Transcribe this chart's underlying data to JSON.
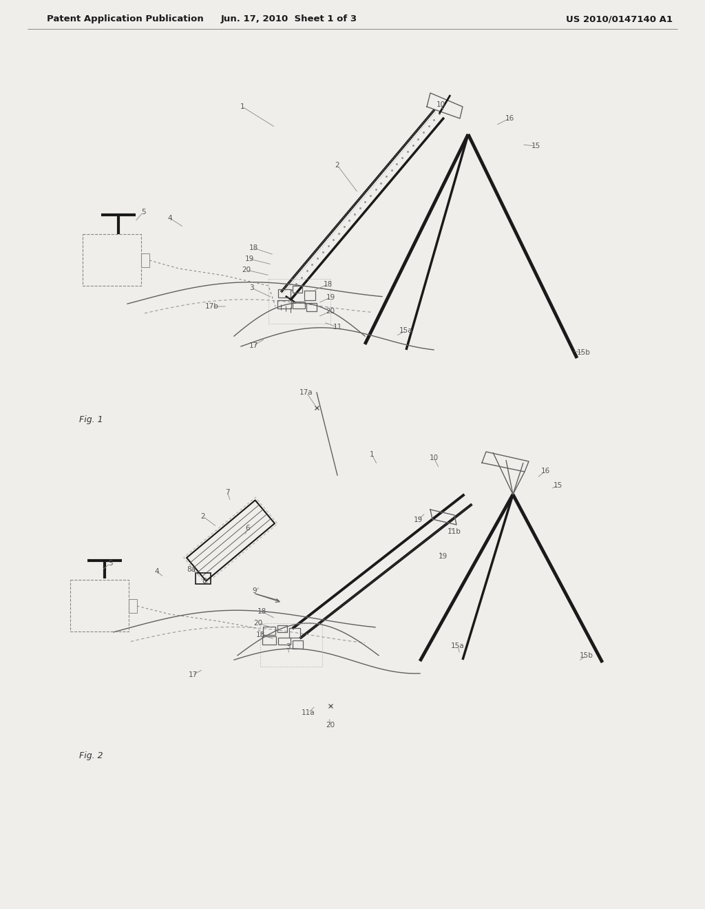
{
  "background_color": "#f0eeeb",
  "header_text": "Patent Application Publication",
  "header_date": "Jun. 17, 2010  Sheet 1 of 3",
  "header_patent": "US 2010/0147140 A1",
  "fig1_label": "Fig. 1",
  "fig2_label": "Fig. 2",
  "line_color": "#606060",
  "dark_line_color": "#1a1a1a",
  "dashed_color": "#888888",
  "label_color": "#555555",
  "font_size_header": 9.5,
  "font_size_label": 7.5
}
